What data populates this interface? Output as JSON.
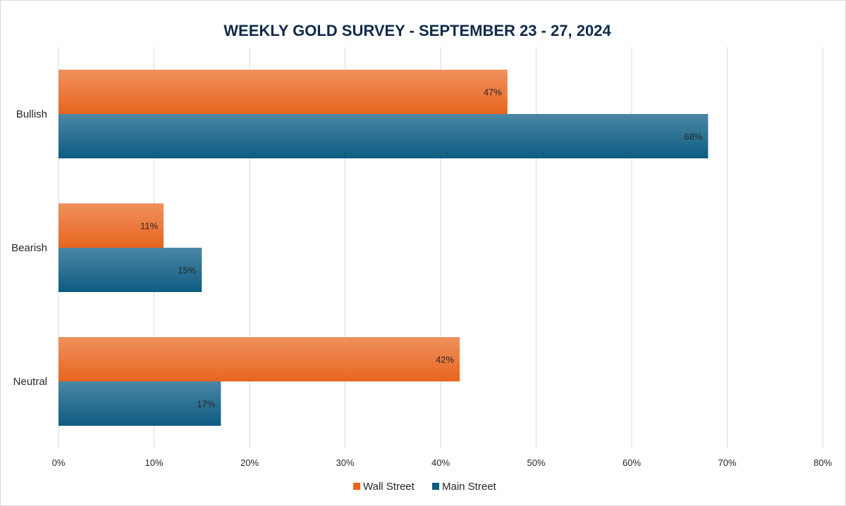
{
  "chart_data": {
    "type": "bar",
    "orientation": "horizontal",
    "title": "WEEKLY GOLD SURVEY - SEPTEMBER 23 - 27, 2024",
    "categories": [
      "Bullish",
      "Bearish",
      "Neutral"
    ],
    "series": [
      {
        "name": "Wall Street",
        "values": [
          47,
          11,
          42
        ],
        "labels": [
          "47%",
          "11%",
          "42%"
        ],
        "color": "#e8651f",
        "color_light": "#f0915e"
      },
      {
        "name": "Main Street",
        "values": [
          68,
          15,
          17
        ],
        "labels": [
          "68%",
          "15%",
          "17%"
        ],
        "color": "#0e5c82",
        "color_light": "#4a86a6"
      }
    ],
    "xlim": [
      0,
      80
    ],
    "x_ticks": [
      0,
      10,
      20,
      30,
      40,
      50,
      60,
      70,
      80
    ],
    "x_tick_labels": [
      "0%",
      "10%",
      "20%",
      "30%",
      "40%",
      "50%",
      "60%",
      "70%",
      "80%"
    ],
    "grid": true,
    "legend_position": "bottom"
  }
}
